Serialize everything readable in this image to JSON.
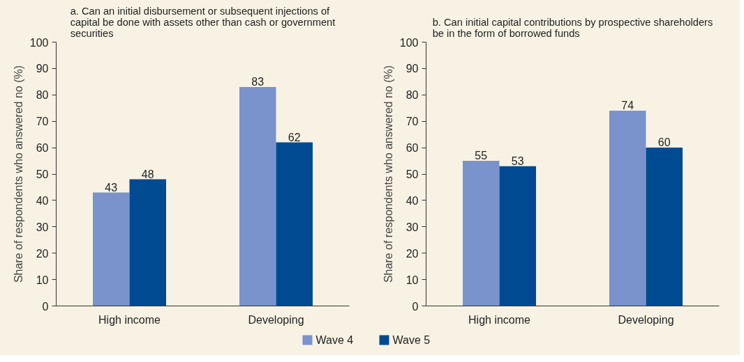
{
  "chart_data": [
    {
      "type": "bar",
      "title": "a. Can an initial disbursement or subsequent injections of capital be done with assets other than cash or government securities",
      "ylabel": "Share of respondents who answered no (%)",
      "categories": [
        "High income",
        "Developing"
      ],
      "series": [
        {
          "name": "Wave 4",
          "color": "#7a93cc",
          "values": [
            43,
            83
          ]
        },
        {
          "name": "Wave 5",
          "color": "#004a92",
          "values": [
            48,
            62
          ]
        }
      ],
      "ylim": [
        0,
        100
      ],
      "yticks": [
        0,
        10,
        20,
        30,
        40,
        50,
        60,
        70,
        80,
        90,
        100
      ],
      "data_labels": true,
      "grid": false,
      "legend": "bottom"
    },
    {
      "type": "bar",
      "title": "b. Can initial capital contributions by prospective shareholders be in the form of borrowed funds",
      "ylabel": "Share of respondents who answered no (%)",
      "categories": [
        "High income",
        "Developing"
      ],
      "series": [
        {
          "name": "Wave 4",
          "color": "#7a93cc",
          "values": [
            55,
            74
          ]
        },
        {
          "name": "Wave 5",
          "color": "#004a92",
          "values": [
            53,
            60
          ]
        }
      ],
      "ylim": [
        0,
        100
      ],
      "yticks": [
        0,
        10,
        20,
        30,
        40,
        50,
        60,
        70,
        80,
        90,
        100
      ],
      "data_labels": true,
      "grid": false,
      "legend": "bottom"
    }
  ]
}
